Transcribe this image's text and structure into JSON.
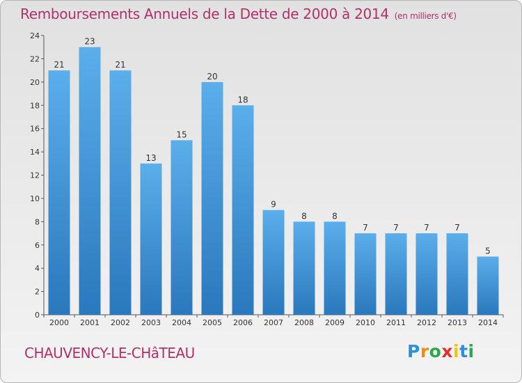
{
  "header": {
    "title": "Remboursements Annuels de la Dette de 2000 à 2014",
    "unit": "(en milliers d'€)"
  },
  "footer": {
    "commune": "CHAUVENCY-LE-CHâTEAU",
    "logo": "Proxiti"
  },
  "colors": {
    "title": "#b0306a",
    "bar_top": "#5aaeea",
    "bar_bottom": "#2a78bd"
  },
  "chart_data": {
    "type": "bar",
    "title": "Remboursements Annuels de la Dette de 2000 à 2014",
    "categories": [
      "2000",
      "2001",
      "2002",
      "2003",
      "2004",
      "2005",
      "2006",
      "2007",
      "2008",
      "2009",
      "2010",
      "2011",
      "2012",
      "2013",
      "2014"
    ],
    "values": [
      21,
      23,
      21,
      13,
      15,
      20,
      18,
      9,
      8,
      8,
      7,
      7,
      7,
      7,
      5
    ],
    "yticks": [
      0,
      2,
      4,
      6,
      8,
      10,
      12,
      14,
      16,
      18,
      20,
      22,
      24
    ],
    "ylim": [
      0,
      24
    ],
    "xlabel": "",
    "ylabel": "",
    "grid": false
  }
}
